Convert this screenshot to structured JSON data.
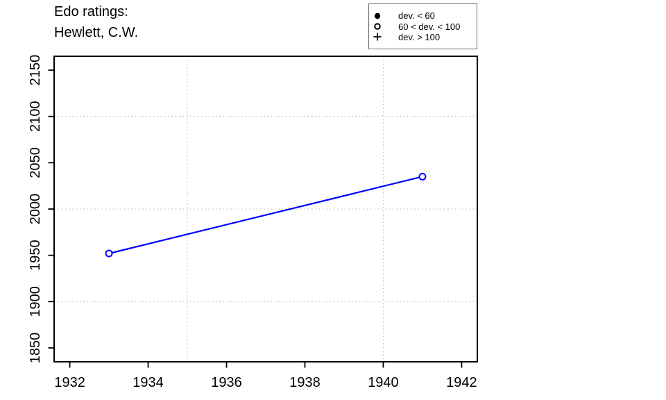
{
  "chart_data": {
    "type": "line",
    "title": {
      "line1": "Edo ratings:",
      "line2": "Hewlett, C.W."
    },
    "legend": {
      "position": "top-right",
      "items": [
        {
          "marker": "filled-circle",
          "label": "dev. < 60"
        },
        {
          "marker": "open-circle",
          "label": "60 < dev. < 100"
        },
        {
          "marker": "plus",
          "label": "dev. > 100"
        }
      ]
    },
    "series": [
      {
        "name": "Edo rating",
        "marker": "open-circle",
        "color": "#0000FF",
        "points": [
          {
            "year": 1933,
            "rating": 1952
          },
          {
            "year": 1941,
            "rating": 2035
          }
        ]
      }
    ],
    "x_ticks": [
      1932,
      1934,
      1936,
      1938,
      1940,
      1942
    ],
    "y_ticks": [
      1850,
      1900,
      1950,
      2000,
      2050,
      2100,
      2150
    ],
    "grid_x": [
      1935,
      1940
    ],
    "grid_y": [
      1900,
      2000,
      2100
    ],
    "xlim": [
      1931.6,
      1942.4
    ],
    "ylim": [
      1835,
      2165
    ],
    "grid_on": true,
    "grid_style": "dotted",
    "colors": {
      "line": "#0000FF",
      "marker_fill": "#FFFFFF",
      "grid": "#AFAFAF",
      "axis": "#000000",
      "text": "#000000",
      "background": "#FFFFFF"
    }
  }
}
